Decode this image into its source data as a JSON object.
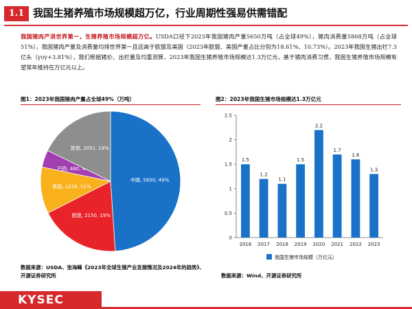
{
  "header": {
    "section_number": "1.1",
    "title": "我国生猪养殖市场规模超万亿，行业周期性强易供需错配"
  },
  "paragraph": {
    "highlight": "我国猪肉产消世界第一，生猪养殖市场规模超万亿。",
    "body": "USDA口径下2023年我国猪肉产量5650万吨（占全球49%），猪肉消费量5868万吨（占全球51%），我国猪肉产量及消费量均排世界第一且远高于欧盟及美国（2023年欧盟、美国产量占比分别为18.61%、10.73%）。2023年我国生猪出栏7.3亿头（yoy+3.81%），我们根据猪价、出栏量及均重测算，2023年我国生猪养殖市场规模达1.3万亿元，基于猪肉消费习惯，我国生猪养殖市场规模有望常年维持在万亿元以上。"
  },
  "figure1": {
    "title": "图1：2023年我国猪肉产量占全球49%（万吨）",
    "source": "数据来源：USDA、张海峰《2023年全球生猪产业发展情况及2024年的趋势》、开源证券研究所",
    "chart_data": {
      "type": "pie",
      "slices": [
        {
          "label": "中国",
          "value": 5650,
          "pct": "49%",
          "text": "中国, 5650, 49%",
          "color": "#1a72c8"
        },
        {
          "label": "欧盟",
          "value": 2150,
          "pct": "19%",
          "text": "欧盟, 2150, 19%",
          "color": "#e8242a"
        },
        {
          "label": "美国",
          "value": 1239,
          "pct": "11%",
          "text": "美国, 1239, 11%",
          "color": "#f9b21c"
        },
        {
          "label": "巴西",
          "value": 460,
          "pct": "4%",
          "text": "巴西, 460, 4%",
          "color": "#a23fb0"
        },
        {
          "label": "其他",
          "value": 2051,
          "pct": "18%",
          "text": "其他, 2051, 18%",
          "color": "#8e8e8e"
        }
      ]
    }
  },
  "figure2": {
    "title": "图2：2023年我国生猪市场规模达1.3万亿元",
    "source": "数据来源：Wind、开源证券研究所",
    "chart_data": {
      "type": "bar",
      "categories": [
        "2016",
        "2017",
        "2018",
        "2019",
        "2020",
        "2021",
        "2022",
        "2023"
      ],
      "values": [
        1.5,
        1.2,
        1.1,
        1.5,
        2.2,
        1.7,
        1.6,
        1.3
      ],
      "ylim": [
        0,
        2.5
      ],
      "yticks": [
        "0",
        "0.5",
        "1",
        "1.5",
        "2",
        "2.5"
      ],
      "legend": "我国生猪市场规模（万亿元）",
      "color": "#1a72c8"
    }
  },
  "footer": {
    "logo": "KYSEC"
  }
}
